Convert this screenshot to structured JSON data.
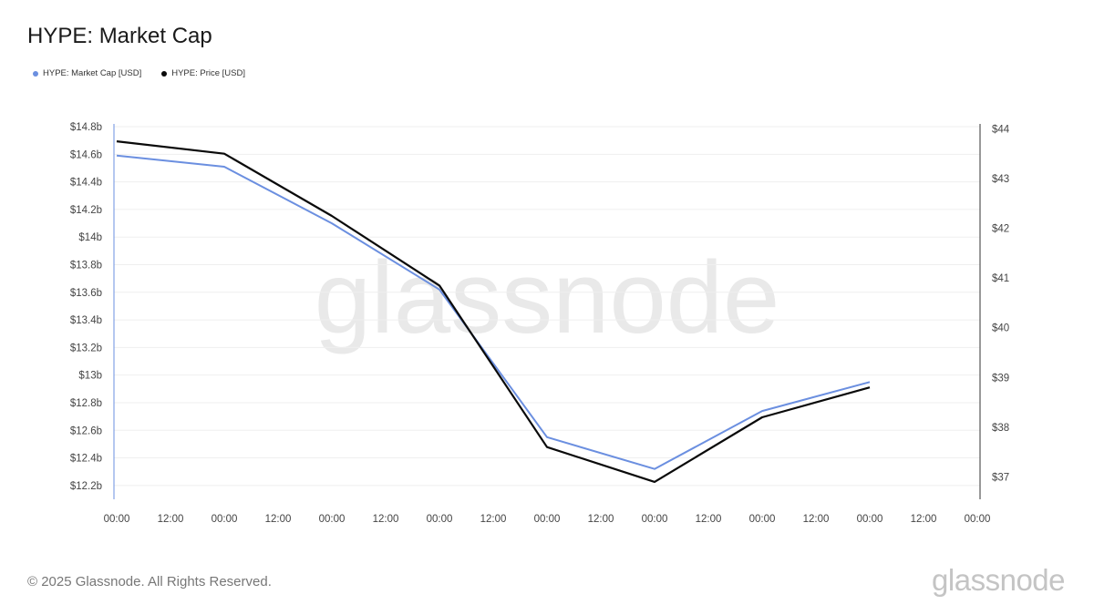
{
  "title": "HYPE: Market Cap",
  "watermark": "glassnode",
  "footer": {
    "copyright": "© 2025 Glassnode. All Rights Reserved.",
    "logo": "glassnode"
  },
  "colors": {
    "market_cap": "#6b8fe0",
    "price": "#0a0a0a",
    "grid": "#efefef",
    "axis": "#9aa0aa",
    "watermark": "#e9e9e9"
  },
  "chart_data": {
    "type": "line",
    "x": [
      "00:00",
      "12:00",
      "00:00",
      "12:00",
      "00:00",
      "12:00",
      "00:00",
      "12:00",
      "00:00",
      "12:00",
      "00:00",
      "12:00",
      "00:00",
      "12:00",
      "00:00",
      "12:00",
      "00:00"
    ],
    "legend_position": "top-left",
    "grid": true,
    "series": [
      {
        "name": "HYPE: Market Cap [USD]",
        "axis": "left",
        "color": "#6b8fe0",
        "points": [
          [
            0,
            14.59
          ],
          [
            2,
            14.51
          ],
          [
            4,
            14.1
          ],
          [
            6,
            13.62
          ],
          [
            8,
            12.55
          ],
          [
            10,
            12.32
          ],
          [
            12,
            12.74
          ],
          [
            14,
            12.95
          ]
        ]
      },
      {
        "name": "HYPE: Price [USD]",
        "axis": "right",
        "color": "#0a0a0a",
        "points": [
          [
            0,
            43.75
          ],
          [
            2,
            43.5
          ],
          [
            4,
            42.25
          ],
          [
            6,
            40.85
          ],
          [
            8,
            37.6
          ],
          [
            10,
            36.9
          ],
          [
            12,
            38.2
          ],
          [
            14,
            38.8
          ]
        ]
      }
    ],
    "y_left": {
      "ticks": [
        12.2,
        12.4,
        12.6,
        12.8,
        13,
        13.2,
        13.4,
        13.6,
        13.8,
        14,
        14.2,
        14.4,
        14.6,
        14.8
      ],
      "tick_labels": [
        "$12.2b",
        "$12.4b",
        "$12.6b",
        "$12.8b",
        "$13b",
        "$13.2b",
        "$13.4b",
        "$13.6b",
        "$13.8b",
        "$14b",
        "$14.2b",
        "$14.4b",
        "$14.6b",
        "$14.8b"
      ],
      "range": [
        12.1,
        14.82
      ]
    },
    "y_right": {
      "ticks": [
        37,
        38,
        39,
        40,
        41,
        42,
        43,
        44
      ],
      "tick_labels": [
        "$37",
        "$38",
        "$39",
        "$40",
        "$41",
        "$42",
        "$43",
        "$44"
      ],
      "range": [
        36.55,
        44.1
      ]
    }
  }
}
